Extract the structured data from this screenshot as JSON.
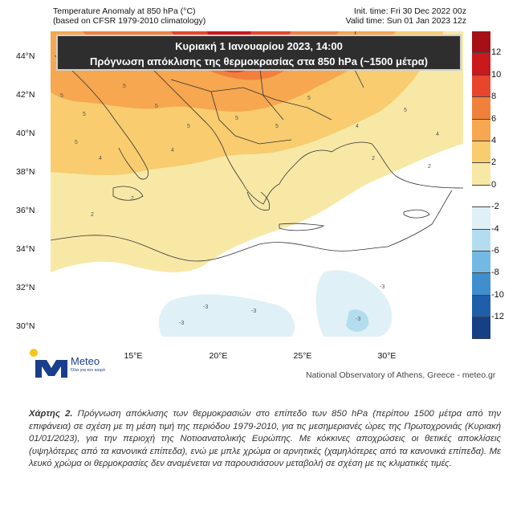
{
  "header": {
    "title_line1": "Temperature Anomaly at 850 hPa (°C)",
    "title_line2": "(based on CFSR 1979-2010 climatology)",
    "init_time": "Init. time: Fri 30 Dec 2022 00z",
    "valid_time": "Valid time: Sun 01 Jan 2023 12z"
  },
  "banner": {
    "line1": "Κυριακή 1 Ιανουαρίου 2023, 14:00",
    "line2": "Πρόγνωση απόκλισης της θερμοκρασίας στα 850 hPa (~1500 μέτρα)"
  },
  "axes": {
    "lat_labels": [
      "44°N",
      "42°N",
      "40°N",
      "38°N",
      "36°N",
      "34°N",
      "32°N",
      "30°N"
    ],
    "lon_labels": [
      "15°E",
      "20°E",
      "25°E",
      "30°E"
    ]
  },
  "colorbar": {
    "labels": [
      "12",
      "10",
      "8",
      "6",
      "4",
      "2",
      "0",
      "-2",
      "-4",
      "-6",
      "-8",
      "-10",
      "-12"
    ],
    "colors": [
      "#a50f15",
      "#cb181d",
      "#e8452c",
      "#f0803c",
      "#f6a74f",
      "#f8cc6f",
      "#f8e8a6",
      "#ffffff",
      "#dff0f7",
      "#b3ddef",
      "#74b9e3",
      "#3f8fce",
      "#1f5faa",
      "#173f85"
    ]
  },
  "contour_labels": {
    "warm_high": "5",
    "warm_low": "4",
    "mild": "2",
    "cold": "-3"
  },
  "logo": {
    "brand": "Meteo",
    "tagline": "Όλα για τον καιρό",
    "colors": {
      "mark": "#1a3e8c",
      "dot": "#f5c518"
    }
  },
  "credit": "National Observatory of Athens, Greece - meteo.gr",
  "caption": {
    "label": "Χάρτης 2.",
    "text": "Πρόγνωση απόκλισης των θερμοκρασιών στο επίπεδο των 850 hPa (περίπου 1500 μέτρα από την επιφάνεια) σε σχέση με τη μέση τιμή της περιόδου 1979-2010, για τις μεσημεριανές ώρες της Πρωτοχρονιάς (Κυριακή 01/01/2023), για την περιοχή της Νοτιοανατολικής Ευρώπης. Με κόκκινες αποχρώσεις οι θετικές αποκλίσεις (υψηλότερες από τα κανονικά επίπεδα), ενώ με μπλε χρώμα οι αρνητικές (χαμηλότερες από τα κανονικά επίπεδα). Με λευκό χρώμα οι θερμοκρασίες δεν αναμένεται να παρουσιάσουν μεταβολή σε σχέση με τις κλιματικές τιμές."
  }
}
